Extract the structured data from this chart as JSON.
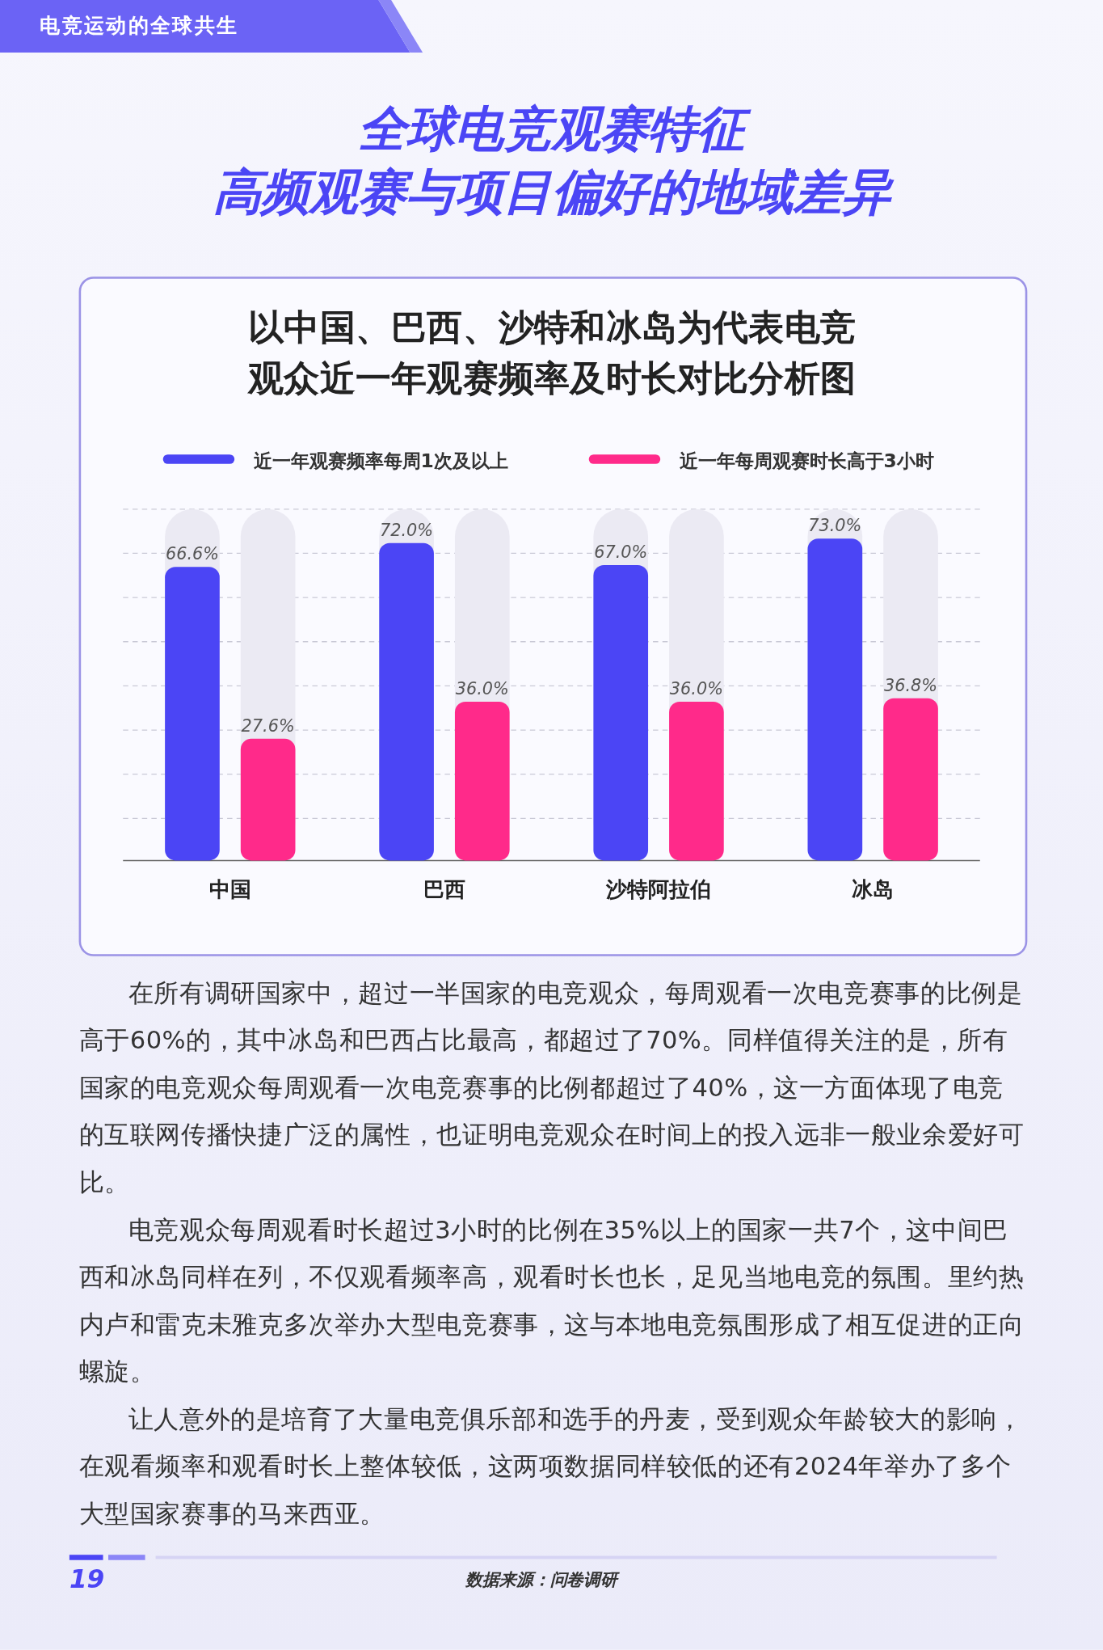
{
  "chart_data": {
    "type": "bar",
    "title": "以中国、巴西、沙特和冰岛为代表电竞观众近一年观赛频率及时长对比分析图",
    "categories": [
      "中国",
      "巴西",
      "沙特阿拉伯",
      "冰岛"
    ],
    "series": [
      {
        "name": "近一年观赛频率每周1次及以上",
        "color": "#4b45f5",
        "values": [
          66.6,
          72.0,
          67.0,
          73.0
        ],
        "value_labels": [
          "66.6%",
          "72.0%",
          "67.0%",
          "73.0%"
        ]
      },
      {
        "name": "近一年每周观赛时长高于3小时",
        "color": "#ff2a8a",
        "values": [
          27.6,
          36.0,
          36.0,
          36.8
        ],
        "value_labels": [
          "27.6%",
          "36.0%",
          "36.0%",
          "36.8%"
        ]
      }
    ],
    "legend": "top",
    "tick_labels": "x",
    "annotations": [
      "电竞运动的全球共生",
      "全球电竞观赛特征",
      "高频观赛与项目偏好的地域差异",
      "在所有调研国家中，超过一半国家的电竞观众，每周观看一次电竞赛事的比例是高于60%的，其中冰岛和巴西占比最高，都超过了70%。同样值得关注的是，所有国家的电竞观众每周观看一次电竞赛事的比例都超过了40%，这一方面体现了电竞的互联网传播快捷广泛的属性，也证明电竞观众在时间上的投入远非一般业余爱好可比。",
      "电竞观众每周观看时长超过3小时的比例在35%以上的国家一共7个，这中间巴西和冰岛同样在列，不仅观看频率高，观看时长也长，足见当地电竞的氛围。里约热内卢和雷克未雅克多次举办大型电竞赛事，这与本地电竞氛围形成了相互促进的正向螺旋。",
      "让人意外的是培育了大量电竞俱乐部和选手的丹麦，受到观众年龄较大的影响，在观看频率和观看时长上整体较低，这两项数据同样较低的还有2024年举办了多个大型国家赛事的马来西亚。",
      "19",
      "数据来源：问卷调研"
    ]
  }
}
